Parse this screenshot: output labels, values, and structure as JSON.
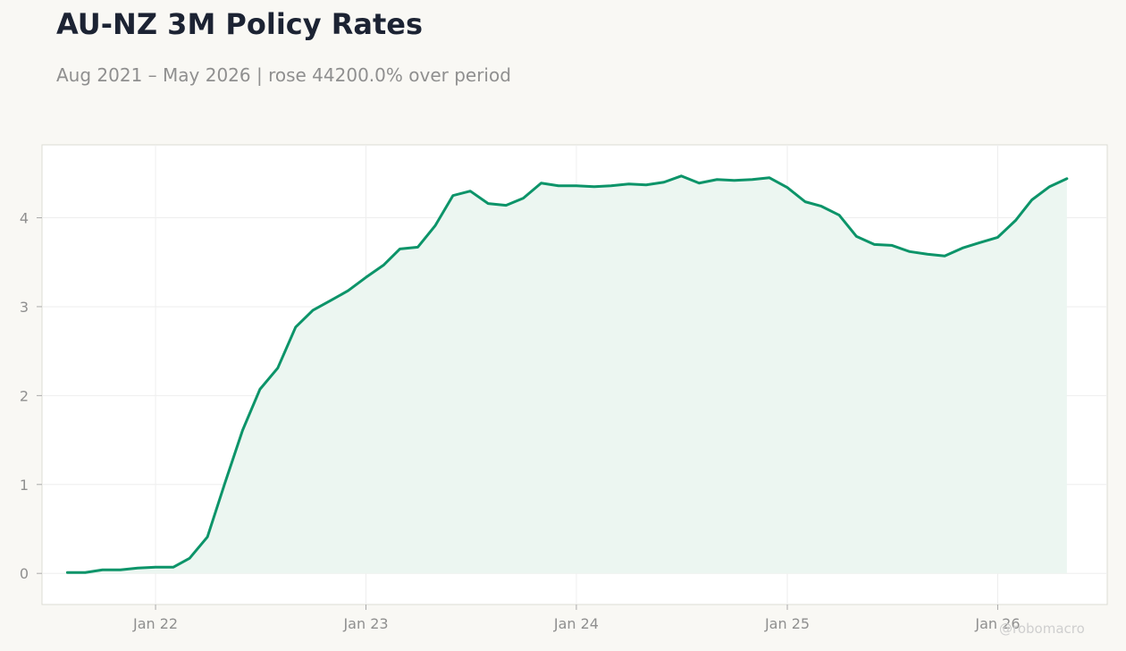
{
  "header": {
    "title": "AU-NZ 3M Policy Rates",
    "subtitle": "Aug 2021 – May 2026 | rose 44200.0% over period"
  },
  "watermark": "@robomacro",
  "colors": {
    "background": "#f9f8f4",
    "plot_background": "#ffffff",
    "line": "#0c9469",
    "fill": "#ebf5f0",
    "grid": "#eeeeee",
    "frame": "#dcdcd4",
    "tick_text": "#8f8f8f"
  },
  "chart_data": {
    "type": "area",
    "title": "AU-NZ 3M Policy Rates",
    "subtitle": "Aug 2021 – May 2026 | rose 44200.0% over period",
    "xlabel": "",
    "ylabel": "",
    "grid": true,
    "legend": "none",
    "x_axis": {
      "range": [
        "2021-06-18",
        "2026-07-10"
      ],
      "ticks": [
        {
          "date": "2022-01-01",
          "label": "Jan 22"
        },
        {
          "date": "2023-01-01",
          "label": "Jan 23"
        },
        {
          "date": "2024-01-01",
          "label": "Jan 24"
        },
        {
          "date": "2025-01-01",
          "label": "Jan 25"
        },
        {
          "date": "2026-01-01",
          "label": "Jan 26"
        }
      ]
    },
    "y_axis": {
      "range": [
        -0.35,
        4.82
      ],
      "ticks": [
        0,
        1,
        2,
        3,
        4
      ]
    },
    "series": [
      {
        "x": [
          "2021-08",
          "2021-09",
          "2021-10",
          "2021-11",
          "2021-12",
          "2022-01",
          "2022-02",
          "2022-03",
          "2022-04",
          "2022-05",
          "2022-06",
          "2022-07",
          "2022-08",
          "2022-09",
          "2022-10",
          "2022-11",
          "2022-12",
          "2023-01",
          "2023-02",
          "2023-03",
          "2023-04",
          "2023-05",
          "2023-06",
          "2023-07",
          "2023-08",
          "2023-09",
          "2023-10",
          "2023-11",
          "2023-12",
          "2024-01",
          "2024-02",
          "2024-03",
          "2024-04",
          "2024-05",
          "2024-06",
          "2024-07",
          "2024-08",
          "2024-09",
          "2024-10",
          "2024-11",
          "2024-12",
          "2025-01",
          "2025-02",
          "2025-03",
          "2025-04",
          "2025-05",
          "2025-06",
          "2025-07",
          "2025-08",
          "2025-09",
          "2025-10",
          "2025-11",
          "2025-12",
          "2026-01",
          "2026-02",
          "2026-03",
          "2026-04",
          "2026-05"
        ],
        "y": [
          0.01,
          0.01,
          0.04,
          0.04,
          0.06,
          0.07,
          0.07,
          0.17,
          0.41,
          1.01,
          1.61,
          2.07,
          2.31,
          2.77,
          2.96,
          3.07,
          3.18,
          3.33,
          3.47,
          3.65,
          3.67,
          3.91,
          4.25,
          4.3,
          4.16,
          4.14,
          4.22,
          4.39,
          4.36,
          4.36,
          4.35,
          4.36,
          4.38,
          4.37,
          4.4,
          4.47,
          4.39,
          4.43,
          4.42,
          4.43,
          4.45,
          4.34,
          4.18,
          4.13,
          4.03,
          3.79,
          3.7,
          3.69,
          3.62,
          3.59,
          3.57,
          3.66,
          3.72,
          3.78,
          3.97,
          4.2,
          4.35,
          4.44
        ]
      }
    ]
  }
}
